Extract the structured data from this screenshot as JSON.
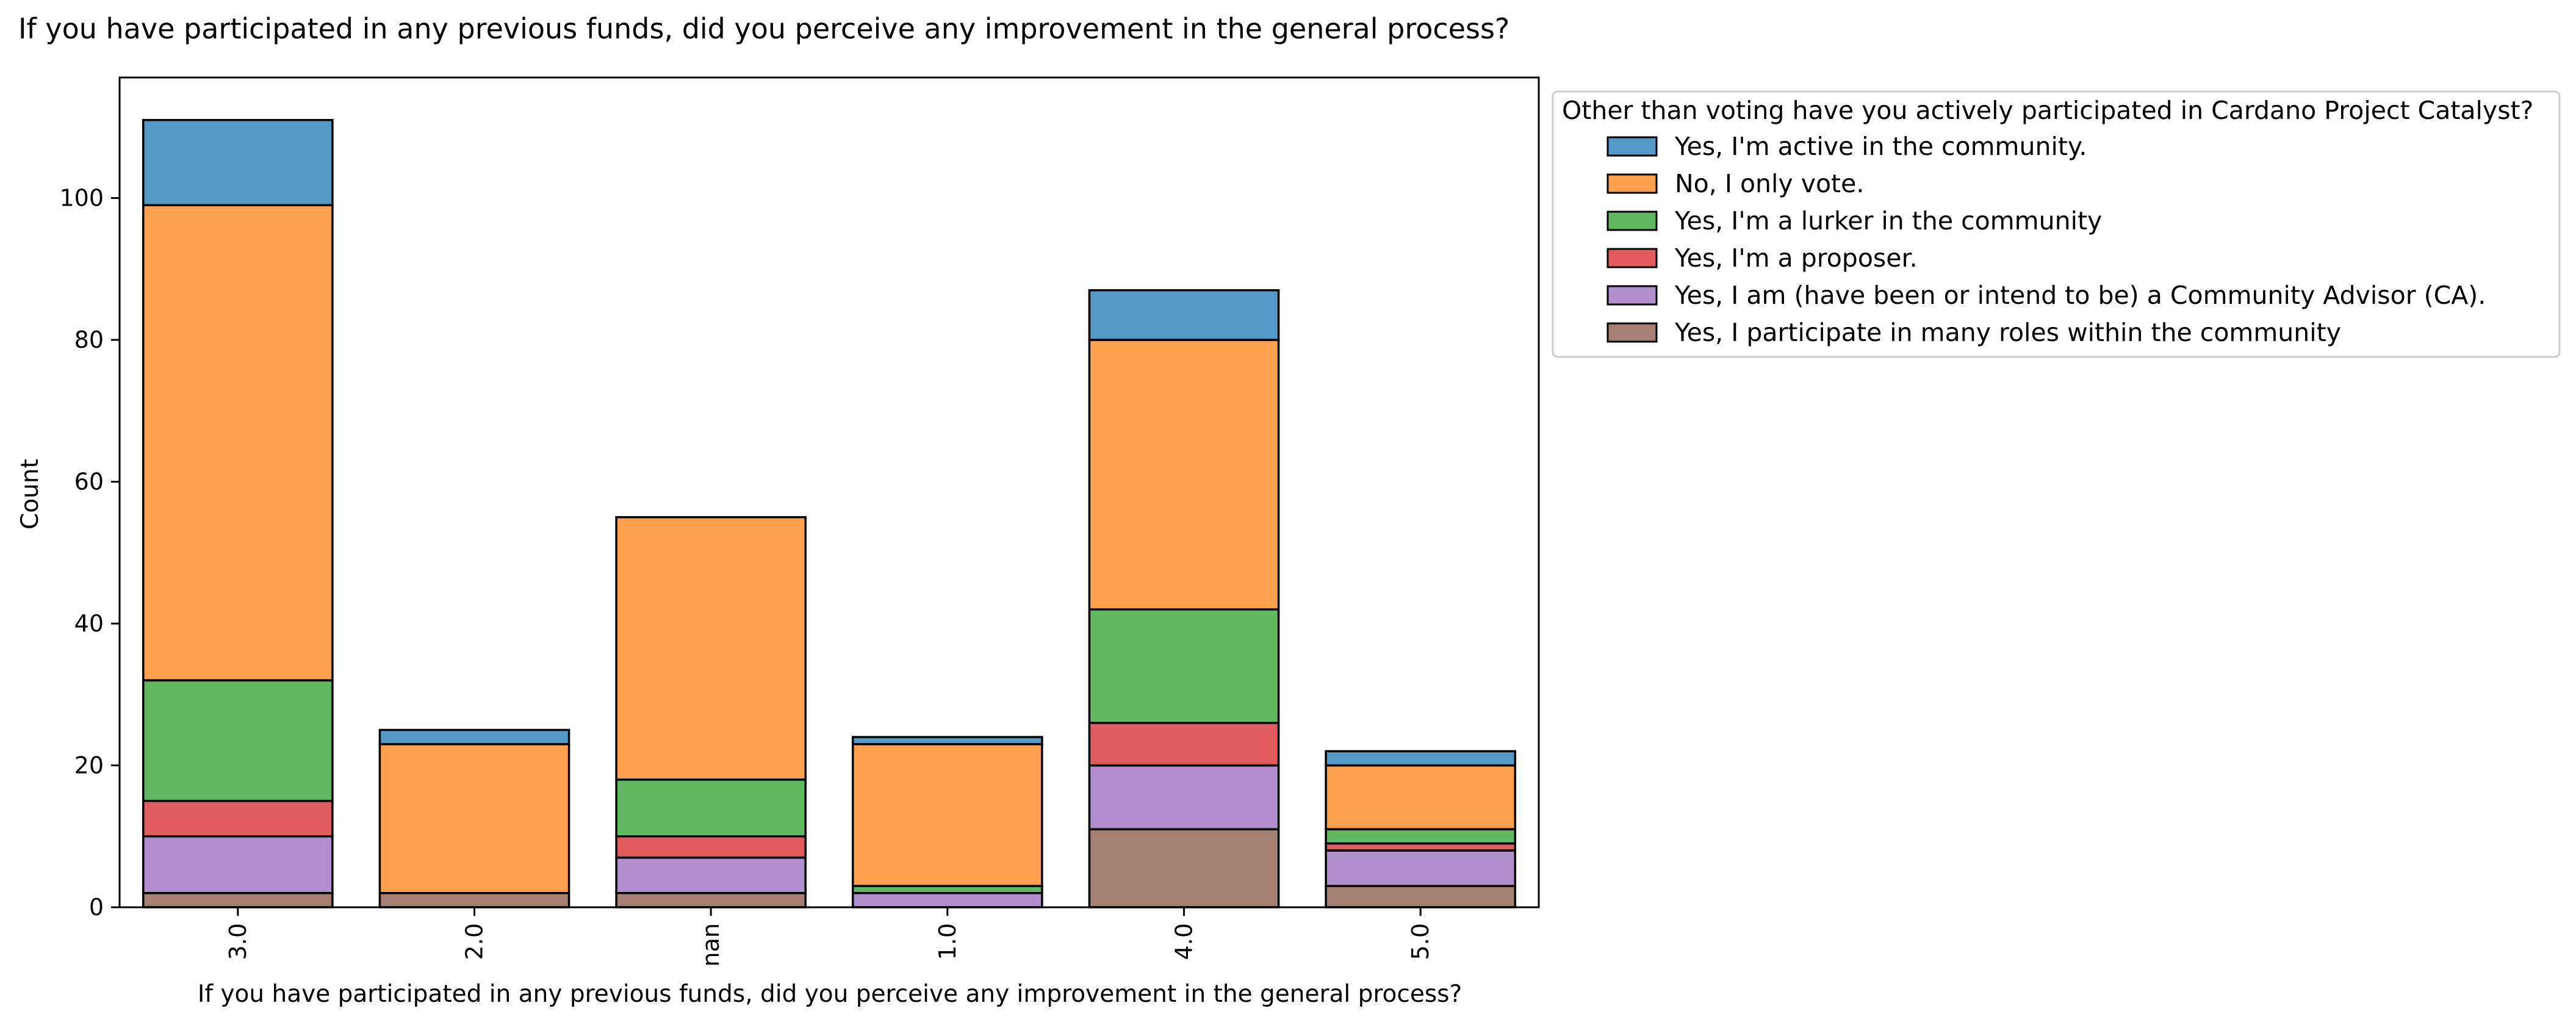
{
  "chart_data": {
    "type": "bar",
    "stacked": true,
    "title": "If you have participated in any previous funds, did you perceive any improvement in the general process?",
    "xlabel": "If you have participated in any previous funds, did you perceive any improvement in the general process?",
    "ylabel": "Count",
    "ylim": [
      0,
      117
    ],
    "yticks": [
      0,
      20,
      40,
      60,
      80,
      100
    ],
    "categories": [
      "3.0",
      "2.0",
      "nan",
      "1.0",
      "4.0",
      "5.0"
    ],
    "legend": {
      "title": "Other than voting have you actively participated in Cardano Project Catalyst?",
      "placement": "outside-right-top"
    },
    "series": [
      {
        "name": "Yes, I participate in many roles within the community",
        "color": "#a57e74",
        "values": [
          2,
          2,
          2,
          0,
          11,
          3
        ]
      },
      {
        "name": "Yes, I am (have been or intend to be) a Community Advisor (CA).",
        "color": "#b18fcd",
        "values": [
          8,
          0,
          5,
          2,
          9,
          5
        ]
      },
      {
        "name": "Yes, I'm a proposer.",
        "color": "#e05c5c",
        "values": [
          5,
          0,
          3,
          0,
          6,
          1
        ]
      },
      {
        "name": "Yes, I'm a lurker in the community",
        "color": "#60b860",
        "values": [
          17,
          0,
          8,
          1,
          16,
          2
        ]
      },
      {
        "name": "No, I only vote.",
        "color": "#ffa04e",
        "values": [
          67,
          21,
          37,
          20,
          38,
          9
        ]
      },
      {
        "name": "Yes, I'm active in the community.",
        "color": "#5499c7",
        "values": [
          12,
          2,
          0,
          1,
          7,
          2
        ]
      }
    ],
    "legend_order": [
      5,
      4,
      3,
      2,
      1,
      0
    ],
    "grid": false
  }
}
